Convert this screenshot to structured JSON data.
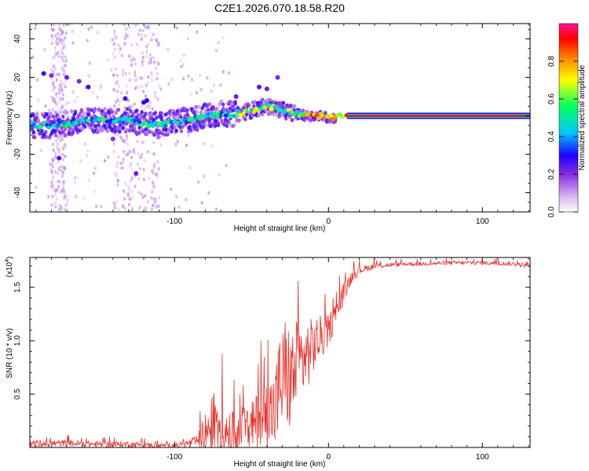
{
  "title": "C2E1.2026.070.18.58.R20",
  "chart_data": [
    {
      "type": "heatmap",
      "title": "C2E1.2026.070.18.58.R20",
      "xlabel": "Height of straight line (km)",
      "ylabel": "Frequency (Hz)",
      "xlim": [
        -194,
        131
      ],
      "ylim": [
        -50,
        48
      ],
      "x_ticks": [
        -100,
        0,
        100
      ],
      "x_tick_labels": [
        "-100",
        "0",
        "100"
      ],
      "y_ticks": [
        -40,
        -20,
        0,
        20,
        40
      ],
      "y_tick_labels": [
        "-40",
        "-20",
        "0",
        "20",
        "40"
      ],
      "trace_x": [
        -194,
        -180,
        -170,
        -160,
        -150,
        -140,
        -130,
        -120,
        -110,
        -100,
        -90,
        -80,
        -70,
        -60,
        -50,
        -45,
        -40,
        -35,
        -30,
        -25,
        -20,
        -15,
        -10,
        -5,
        0,
        5,
        10,
        15,
        131
      ],
      "trace_y": [
        -5,
        -5,
        -4,
        -3,
        -2,
        -3,
        -2,
        -4,
        -5,
        -3,
        -2,
        0,
        1,
        1,
        3,
        4,
        5,
        4,
        3,
        2,
        1,
        0,
        0,
        0,
        -1,
        -1,
        0,
        0,
        0
      ],
      "colorbar": {
        "label": "Normalized spectral amplitude",
        "range": [
          0.0,
          1.0
        ],
        "ticks": [
          0.0,
          0.2,
          0.4,
          0.6,
          0.8
        ],
        "tick_labels": [
          "0.0",
          "0.2",
          "0.4",
          "0.6",
          "0.8"
        ],
        "colors": [
          "#ffffff",
          "#d9b8f0",
          "#8a2be2",
          "#1f00ff",
          "#00c8ff",
          "#00ff60",
          "#ffff00",
          "#ff8000",
          "#ff0000",
          "#ff1493"
        ]
      }
    },
    {
      "type": "line",
      "xlabel": "Height of straight line (km)",
      "ylabel": "SNR (10 * v/v)",
      "y_scale_label": "(x10",
      "y_scale_exponent": "4",
      "y_units_scale": 10000,
      "xlim": [
        -194,
        131
      ],
      "ylim": [
        0,
        1.78
      ],
      "x_ticks": [
        -100,
        0,
        100
      ],
      "x_tick_labels": [
        "-100",
        "0",
        "100"
      ],
      "y_ticks": [
        0.5,
        1.0,
        1.5
      ],
      "y_tick_labels": [
        "0.5",
        "1.0",
        "1.5"
      ],
      "line_color": "#e8322b",
      "series_x": [
        -194,
        -170,
        -150,
        -130,
        -110,
        -100,
        -95,
        -90,
        -85,
        -80,
        -76,
        -72,
        -68,
        -65,
        -60,
        -56,
        -52,
        -48,
        -45,
        -42,
        -40,
        -38,
        -35,
        -32,
        -28,
        -25,
        -22,
        -20,
        -18,
        -15,
        -12,
        -10,
        -6,
        -2,
        0,
        5,
        10,
        15,
        20,
        25,
        30,
        40,
        50,
        60,
        80,
        100,
        120,
        131
      ],
      "series_y": [
        0.03,
        0.04,
        0.03,
        0.03,
        0.02,
        0.02,
        0.03,
        0.04,
        0.06,
        0.14,
        0.22,
        0.25,
        0.2,
        0.16,
        0.12,
        0.18,
        0.15,
        0.22,
        0.28,
        0.25,
        0.3,
        0.32,
        0.35,
        0.55,
        0.7,
        0.62,
        0.7,
        0.78,
        0.8,
        0.85,
        0.9,
        0.95,
        1.02,
        1.05,
        1.1,
        1.25,
        1.45,
        1.6,
        1.66,
        1.68,
        1.7,
        1.71,
        1.72,
        1.72,
        1.73,
        1.73,
        1.72,
        1.7
      ],
      "series_noise": [
        0.04,
        0.03,
        0.03,
        0.03,
        0.02,
        0.02,
        0.03,
        0.04,
        0.06,
        0.2,
        0.28,
        0.3,
        0.28,
        0.22,
        0.2,
        0.22,
        0.22,
        0.25,
        0.3,
        0.32,
        0.35,
        0.38,
        0.4,
        0.5,
        0.55,
        0.5,
        0.45,
        0.45,
        0.4,
        0.35,
        0.3,
        0.28,
        0.22,
        0.18,
        0.15,
        0.12,
        0.1,
        0.06,
        0.04,
        0.03,
        0.03,
        0.02,
        0.02,
        0.02,
        0.02,
        0.02,
        0.02,
        0.02
      ]
    }
  ]
}
